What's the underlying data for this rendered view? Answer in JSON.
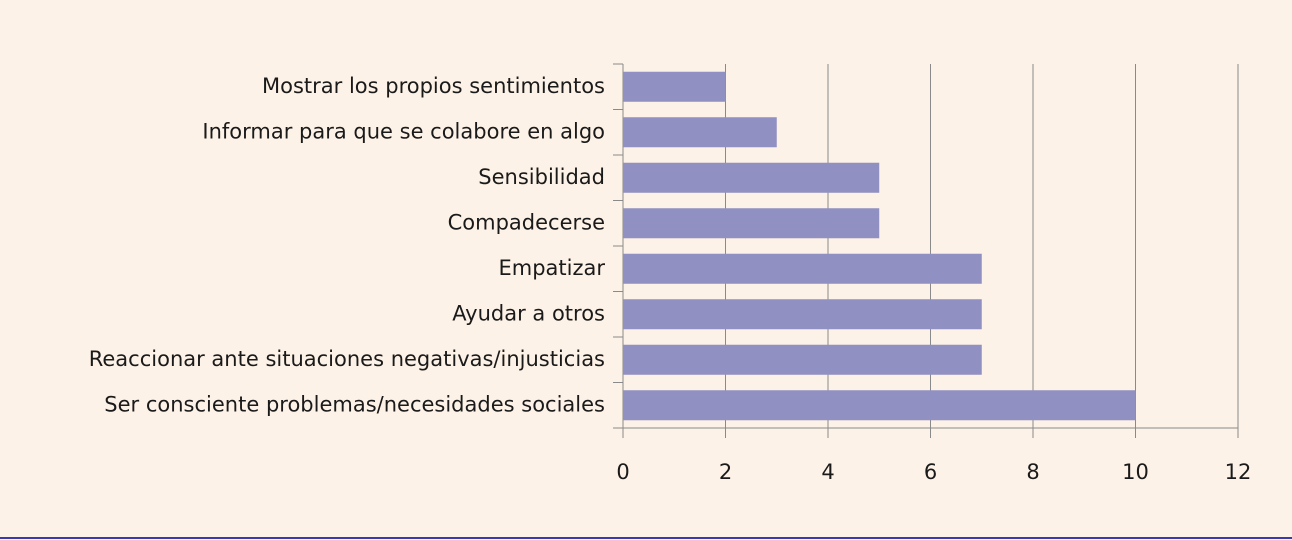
{
  "chart_data": {
    "type": "bar",
    "orientation": "horizontal",
    "categories": [
      "Mostrar los propios sentimientos",
      "Informar para que se colabore en algo",
      "Sensibilidad",
      "Compadecerse",
      "Empatizar",
      "Ayudar a otros",
      "Reaccionar ante situaciones negativas/injusticias",
      "Ser consciente problemas/necesidades sociales"
    ],
    "values": [
      2,
      3,
      5,
      5,
      7,
      7,
      7,
      10
    ],
    "color": "#9190c2",
    "xlim": [
      0,
      12
    ],
    "xticks": [
      0,
      2,
      4,
      6,
      8,
      10,
      12
    ],
    "grid": true
  }
}
